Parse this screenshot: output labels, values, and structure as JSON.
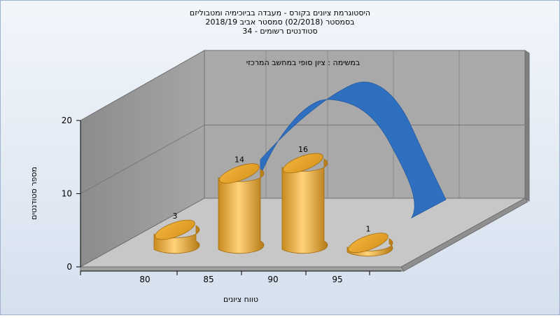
{
  "chart_data": {
    "type": "bar",
    "title_lines": [
      "היסטוגרמת ציונים בקורס - מעבדה בביוכימיה ומטבוליזם",
      "בסמסטר  (02/2018)  סמסטר אביב 2018/19",
      "סטודנטים רשומים - 34"
    ],
    "subtitle": "במשימה : ציון סופי במחשב המרכזי",
    "xlabel": "טווח ציונים",
    "ylabel": "מספר סטודנטים",
    "categories": [
      "80",
      "85",
      "90",
      "95"
    ],
    "values": [
      3,
      14,
      16,
      1
    ],
    "data_labels": [
      "3",
      "14",
      "16",
      "1"
    ],
    "y_ticks": [
      "0",
      "10",
      "20"
    ],
    "ylim": [
      0,
      20
    ],
    "grid": true,
    "style": "3d-cylinder",
    "colors": {
      "bar_light": "#FFD27A",
      "bar_dark": "#C98A1E",
      "curve": "#2F6FC0",
      "background": "#DCE6F2",
      "wall": "#A8A8A8",
      "floor": "#C4C4C4"
    }
  }
}
